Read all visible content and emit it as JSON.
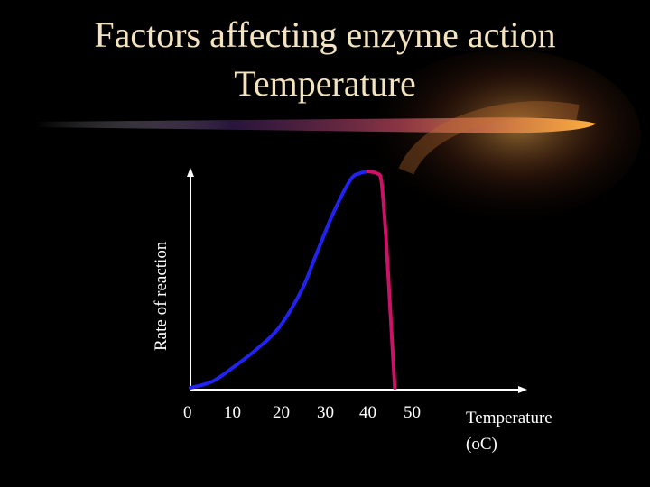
{
  "title": "Factors affecting enzyme action",
  "subtitle": "Temperature",
  "colors": {
    "background": "#000000",
    "title_text": "#f3e4bf",
    "rising_line": "#2222ee",
    "falling_line": "#cc1166",
    "axis": "#ffffff",
    "swoosh": "#f0a030"
  },
  "chart_data": {
    "type": "line",
    "title": "",
    "xlabel": "Temperature",
    "xlabel_unit": "(oC)",
    "ylabel": "Rate of reaction",
    "x_ticks": [
      "0",
      "10",
      "20",
      "30",
      "40",
      "50"
    ],
    "xlim": [
      0,
      50
    ],
    "ylim": [
      0,
      100
    ],
    "grid": false,
    "legend": "none",
    "series": [
      {
        "segment": "rising",
        "color": "#2222ee",
        "points": [
          [
            0,
            0
          ],
          [
            5,
            3
          ],
          [
            10,
            10
          ],
          [
            15,
            18
          ],
          [
            20,
            28
          ],
          [
            25,
            45
          ],
          [
            28,
            60
          ],
          [
            32,
            80
          ],
          [
            36,
            96
          ],
          [
            38,
            99
          ],
          [
            40,
            100
          ]
        ]
      },
      {
        "segment": "falling",
        "color": "#cc1166",
        "points": [
          [
            40,
            100
          ],
          [
            42,
            99
          ],
          [
            43,
            95
          ],
          [
            44,
            70
          ],
          [
            45,
            35
          ],
          [
            46,
            0
          ]
        ]
      }
    ]
  }
}
